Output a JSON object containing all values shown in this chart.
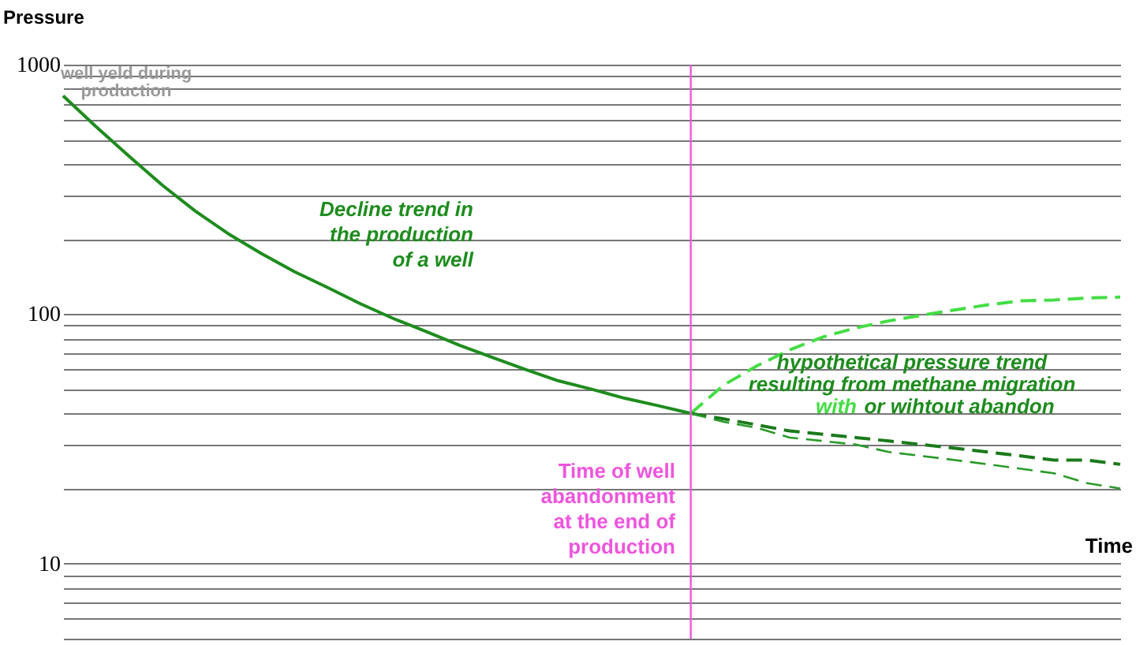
{
  "chart_data": {
    "type": "line",
    "xlabel": "Time",
    "ylabel": "Pressure",
    "log": "y",
    "grid": "y",
    "marker": "none",
    "categories": [
      null,
      null,
      null,
      null,
      null,
      null,
      null,
      null,
      null,
      null,
      null,
      null,
      null,
      null,
      null,
      null,
      null,
      null,
      null,
      null,
      null,
      null,
      null,
      null,
      null,
      null,
      null,
      null,
      null,
      null,
      null,
      null,
      null
    ],
    "ylim": [
      5,
      1000
    ],
    "yticks": [
      {
        "value": 5,
        "label": null
      },
      {
        "value": 6,
        "label": null
      },
      {
        "value": 7,
        "label": null
      },
      {
        "value": 8,
        "label": null
      },
      {
        "value": 9,
        "label": null
      },
      10,
      {
        "value": 20,
        "label": null
      },
      {
        "value": 30,
        "label": null
      },
      {
        "value": 40,
        "label": null
      },
      {
        "value": 50,
        "label": null
      },
      {
        "value": 60,
        "label": null
      },
      {
        "value": 70,
        "label": null
      },
      {
        "value": 80,
        "label": null
      },
      {
        "value": 90,
        "label": null
      },
      100,
      {
        "value": 200,
        "label": null
      },
      {
        "value": 300,
        "label": null
      },
      {
        "value": 400,
        "label": null
      },
      {
        "value": 500,
        "label": null
      },
      {
        "value": 600,
        "label": null
      },
      {
        "value": 700,
        "label": null
      },
      {
        "value": 800,
        "label": null
      },
      {
        "value": 900,
        "label": null
      },
      1000
    ],
    "series": [
      {
        "line_style": "solid",
        "color": "#1e8c1e",
        "values": [
          750,
          564,
          429,
          329,
          259,
          210,
          175,
          148,
          128,
          110,
          96,
          85,
          75,
          67,
          60,
          54,
          50,
          46,
          43,
          40,
          null,
          null,
          null,
          null,
          null,
          null,
          null,
          null,
          null,
          null,
          null,
          null,
          null
        ]
      },
      {
        "line_style": "dashed",
        "color": "#44dd44",
        "values": [
          null,
          null,
          null,
          null,
          null,
          null,
          null,
          null,
          null,
          null,
          null,
          null,
          null,
          null,
          null,
          null,
          null,
          null,
          null,
          40,
          52,
          62,
          72,
          81,
          88,
          94,
          99,
          104,
          109,
          113,
          114,
          116,
          117
        ]
      },
      {
        "line_style": "dashed",
        "color": "#1a7a1a",
        "values": [
          null,
          null,
          null,
          null,
          null,
          null,
          null,
          null,
          null,
          null,
          null,
          null,
          null,
          null,
          null,
          null,
          null,
          null,
          null,
          40,
          38,
          36,
          34,
          33,
          32,
          31,
          30,
          29,
          28,
          27,
          26,
          26,
          25
        ]
      },
      {
        "line_style": "dashed",
        "color": "#2a9a2a",
        "values": [
          null,
          null,
          null,
          null,
          null,
          null,
          null,
          null,
          null,
          null,
          null,
          null,
          null,
          null,
          null,
          null,
          null,
          null,
          null,
          40,
          37,
          35,
          32,
          31,
          30,
          28,
          27,
          26,
          25,
          24,
          23,
          21,
          20
        ]
      }
    ],
    "annotations": [
      "well yeld during\nproduction",
      "Decline trend in\nthe production\nof a well",
      "hypothetical pressure trend\nresulting from methane migration",
      "with",
      "or wihtout abandon",
      "Time of well\nabandonment\nat the end of\nproduction"
    ]
  }
}
